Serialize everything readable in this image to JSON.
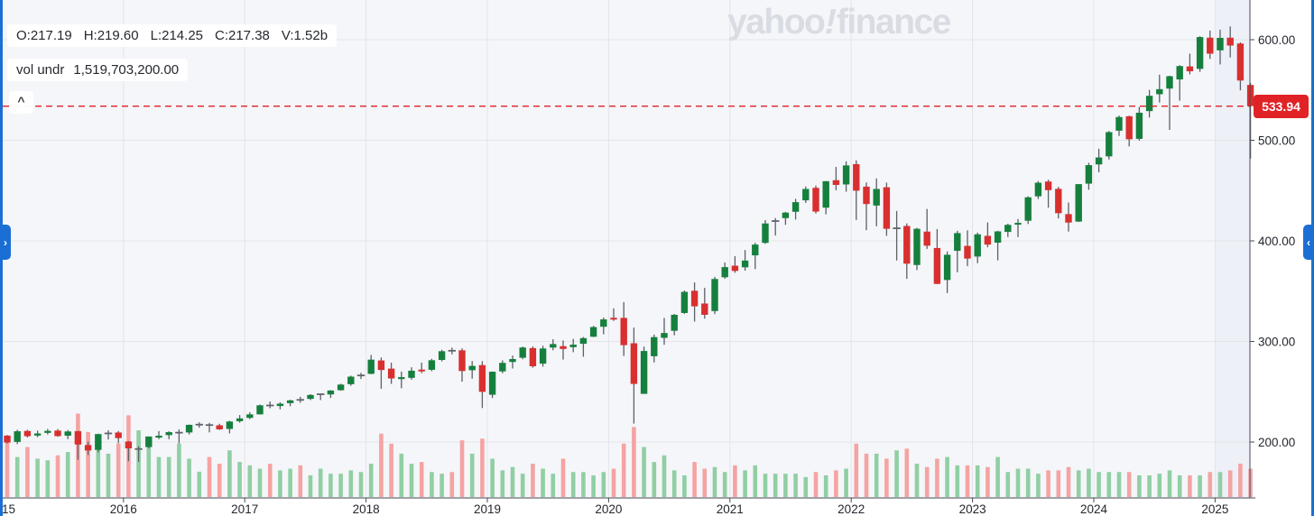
{
  "watermark": {
    "yahoo": "yahoo",
    "bang": "!",
    "finance": "finance"
  },
  "legend": {
    "ohlc_parts": [
      "O:217.19",
      "H:219.60",
      "L:214.25",
      "C:217.38",
      "V:1.52b"
    ],
    "vol_label": "vol undr",
    "vol_value": "1,519,703,200.00",
    "collapse_icon": "^"
  },
  "nav": {
    "left_icon": "›",
    "right_icon": "‹"
  },
  "price_marker": {
    "label": "533.94",
    "value": 533.94
  },
  "axes": {
    "y_ticks": [
      {
        "label": "600.00",
        "value": 600
      },
      {
        "label": "500.00",
        "value": 500
      },
      {
        "label": "400.00",
        "value": 400
      },
      {
        "label": "300.00",
        "value": 300
      },
      {
        "label": "200.00",
        "value": 200
      }
    ],
    "x_ticks": [
      {
        "label": "15",
        "year": 2015
      },
      {
        "label": "2016",
        "year": 2016
      },
      {
        "label": "2017",
        "year": 2017
      },
      {
        "label": "2018",
        "year": 2018
      },
      {
        "label": "2019",
        "year": 2019
      },
      {
        "label": "2020",
        "year": 2020
      },
      {
        "label": "2021",
        "year": 2021
      },
      {
        "label": "2022",
        "year": 2022
      },
      {
        "label": "2023",
        "year": 2023
      },
      {
        "label": "2024",
        "year": 2024
      },
      {
        "label": "2025",
        "year": 2025
      }
    ]
  },
  "colors": {
    "up": "#15803d",
    "down": "#d92f2f",
    "vol_up": "#90cfa4",
    "vol_down": "#f5a3a3",
    "wick": "#5c6068",
    "doji": "#5f646c",
    "accent_blue": "#1b6fd4",
    "marker_red": "#e02227",
    "grid": "#e3e5ea",
    "axis": "#464a54",
    "plot_bg": "#f5f6f9",
    "band_bg": "#edf0f7",
    "text": "#24272e",
    "watermark": "#d9dce3"
  },
  "chart_data": {
    "type": "candlestick",
    "interval": "monthly",
    "range": "2015 - 2025",
    "legend_note": "volume underlay, last price line shown",
    "price_line": 533.94,
    "y_axis_ticks": [
      200,
      300,
      400,
      500,
      600
    ],
    "x_axis_years": [
      2015,
      2016,
      2017,
      2018,
      2019,
      2020,
      2021,
      2022,
      2023,
      2024,
      2025
    ],
    "columns": [
      "month",
      "open",
      "high",
      "low",
      "close",
      "volume_billions"
    ],
    "candles": [
      [
        "2015-01",
        206.4,
        206.9,
        198.6,
        199.5,
        3.4
      ],
      [
        "2015-02",
        200.1,
        212.2,
        197.9,
        210.7,
        2.4
      ],
      [
        "2015-03",
        211.0,
        212.2,
        204.5,
        205.8,
        3.0
      ],
      [
        "2015-04",
        206.4,
        211.3,
        204.8,
        208.5,
        2.3
      ],
      [
        "2015-05",
        209.1,
        213.0,
        207.5,
        211.1,
        2.2
      ],
      [
        "2015-06",
        211.4,
        212.9,
        205.3,
        205.9,
        2.5
      ],
      [
        "2015-07",
        206.3,
        211.9,
        202.9,
        210.5,
        2.7
      ],
      [
        "2015-08",
        210.8,
        211.2,
        182.4,
        197.5,
        5.0
      ],
      [
        "2015-09",
        197.0,
        200.4,
        187.0,
        191.6,
        3.9
      ],
      [
        "2015-10",
        192.2,
        208.3,
        189.8,
        207.9,
        3.1
      ],
      [
        "2015-11",
        208.5,
        211.7,
        202.5,
        208.6,
        2.6
      ],
      [
        "2015-12",
        209.5,
        211.0,
        198.7,
        203.9,
        3.2
      ],
      [
        "2016-01",
        200.5,
        201.0,
        181.0,
        193.7,
        4.9
      ],
      [
        "2016-02",
        192.5,
        195.8,
        180.3,
        193.6,
        4.0
      ],
      [
        "2016-03",
        195.0,
        205.5,
        193.6,
        205.5,
        3.2
      ],
      [
        "2016-04",
        204.4,
        210.9,
        202.9,
        206.3,
        2.4
      ],
      [
        "2016-05",
        206.9,
        210.7,
        202.8,
        209.8,
        2.4
      ],
      [
        "2016-06",
        209.1,
        212.5,
        198.6,
        209.5,
        3.2
      ],
      [
        "2016-07",
        209.5,
        217.4,
        207.5,
        217.1,
        2.3
      ],
      [
        "2016-08",
        217.19,
        219.6,
        214.25,
        217.38,
        1.52
      ],
      [
        "2016-09",
        217.4,
        219.1,
        209.6,
        216.3,
        2.4
      ],
      [
        "2016-10",
        216.6,
        218.2,
        212.1,
        212.6,
        2.0
      ],
      [
        "2016-11",
        213.0,
        221.1,
        208.6,
        220.4,
        2.8
      ],
      [
        "2016-12",
        220.7,
        226.8,
        219.2,
        223.5,
        2.1
      ],
      [
        "2017-01",
        224.0,
        229.7,
        222.7,
        227.5,
        1.9
      ],
      [
        "2017-02",
        227.5,
        237.3,
        227.3,
        236.5,
        1.7
      ],
      [
        "2017-03",
        237.0,
        240.3,
        233.6,
        235.7,
        2.0
      ],
      [
        "2017-04",
        235.8,
        239.5,
        232.5,
        238.1,
        1.6
      ],
      [
        "2017-05",
        238.7,
        242.1,
        235.6,
        241.4,
        1.7
      ],
      [
        "2017-06",
        242.0,
        245.0,
        239.0,
        241.8,
        1.9
      ],
      [
        "2017-07",
        242.9,
        247.6,
        241.7,
        246.8,
        1.3
      ],
      [
        "2017-08",
        247.5,
        248.3,
        241.7,
        247.5,
        1.7
      ],
      [
        "2017-09",
        247.3,
        251.6,
        243.8,
        251.2,
        1.4
      ],
      [
        "2017-10",
        251.5,
        258.0,
        251.0,
        257.1,
        1.4
      ],
      [
        "2017-11",
        257.5,
        266.0,
        255.9,
        265.0,
        1.6
      ],
      [
        "2017-12",
        265.5,
        268.8,
        262.7,
        266.9,
        1.5
      ],
      [
        "2018-01",
        267.8,
        286.6,
        267.4,
        281.9,
        2.0
      ],
      [
        "2018-02",
        281.1,
        284.0,
        252.9,
        271.6,
        3.8
      ],
      [
        "2018-03",
        273.0,
        278.9,
        257.8,
        263.2,
        3.2
      ],
      [
        "2018-04",
        262.6,
        270.0,
        253.5,
        264.5,
        2.6
      ],
      [
        "2018-05",
        263.8,
        274.3,
        262.0,
        270.9,
        2.0
      ],
      [
        "2018-06",
        272.0,
        279.0,
        268.5,
        270.3,
        2.1
      ],
      [
        "2018-07",
        271.8,
        282.7,
        270.4,
        281.3,
        1.5
      ],
      [
        "2018-08",
        281.6,
        291.7,
        280.2,
        290.3,
        1.4
      ],
      [
        "2018-09",
        290.8,
        293.9,
        287.2,
        290.7,
        1.5
      ],
      [
        "2018-10",
        291.2,
        293.2,
        260.0,
        270.6,
        3.4
      ],
      [
        "2018-11",
        271.4,
        280.5,
        263.0,
        275.7,
        2.6
      ],
      [
        "2018-12",
        276.5,
        280.4,
        233.8,
        249.9,
        3.5
      ],
      [
        "2019-01",
        247.0,
        270.1,
        243.7,
        269.9,
        2.3
      ],
      [
        "2019-02",
        270.2,
        281.2,
        268.4,
        278.7,
        1.6
      ],
      [
        "2019-03",
        279.6,
        286.0,
        273.1,
        282.5,
        1.8
      ],
      [
        "2019-04",
        283.8,
        294.9,
        282.3,
        294.0,
        1.4
      ],
      [
        "2019-05",
        293.4,
        295.1,
        273.9,
        275.3,
        2.0
      ],
      [
        "2019-06",
        277.9,
        295.7,
        275.0,
        293.0,
        1.7
      ],
      [
        "2019-07",
        293.9,
        302.2,
        291.2,
        297.4,
        1.4
      ],
      [
        "2019-08",
        295.3,
        300.9,
        282.0,
        292.5,
        2.3
      ],
      [
        "2019-09",
        294.3,
        302.6,
        289.3,
        296.8,
        1.5
      ],
      [
        "2019-10",
        297.7,
        304.4,
        284.8,
        303.3,
        1.5
      ],
      [
        "2019-11",
        304.7,
        315.5,
        304.3,
        314.3,
        1.3
      ],
      [
        "2019-12",
        314.6,
        323.8,
        307.1,
        321.9,
        1.5
      ],
      [
        "2020-01",
        323.5,
        332.9,
        320.4,
        321.7,
        1.7
      ],
      [
        "2020-02",
        323.4,
        339.1,
        285.5,
        296.3,
        3.2
      ],
      [
        "2020-03",
        298.2,
        313.8,
        218.3,
        257.8,
        4.2
      ],
      [
        "2020-04",
        247.9,
        294.9,
        247.9,
        290.5,
        3.0
      ],
      [
        "2020-05",
        285.3,
        306.8,
        279.1,
        304.3,
        2.1
      ],
      [
        "2020-06",
        303.6,
        323.4,
        296.7,
        308.4,
        2.5
      ],
      [
        "2020-07",
        310.6,
        327.2,
        306.1,
        326.5,
        1.6
      ],
      [
        "2020-08",
        328.3,
        350.7,
        327.4,
        349.3,
        1.3
      ],
      [
        "2020-09",
        350.4,
        358.7,
        319.8,
        334.9,
        2.1
      ],
      [
        "2020-10",
        337.7,
        353.2,
        322.6,
        326.5,
        1.7
      ],
      [
        "2020-11",
        330.2,
        364.2,
        327.2,
        362.1,
        1.8
      ],
      [
        "2020-12",
        363.8,
        378.5,
        362.3,
        373.9,
        1.5
      ],
      [
        "2021-01",
        375.3,
        384.8,
        368.3,
        370.1,
        1.9
      ],
      [
        "2021-02",
        373.7,
        390.9,
        370.4,
        380.4,
        1.6
      ],
      [
        "2021-03",
        385.6,
        398.1,
        371.9,
        396.3,
        1.9
      ],
      [
        "2021-04",
        398.0,
        420.7,
        397.0,
        417.3,
        1.4
      ],
      [
        "2021-05",
        419.4,
        422.7,
        405.3,
        420.0,
        1.4
      ],
      [
        "2021-06",
        422.6,
        428.8,
        415.9,
        428.1,
        1.4
      ],
      [
        "2021-07",
        428.9,
        441.8,
        421.2,
        438.5,
        1.4
      ],
      [
        "2021-08",
        440.3,
        454.1,
        437.7,
        451.6,
        1.2
      ],
      [
        "2021-09",
        452.7,
        455.0,
        427.2,
        429.1,
        1.5
      ],
      [
        "2021-10",
        433.0,
        459.6,
        426.4,
        459.3,
        1.3
      ],
      [
        "2021-11",
        460.3,
        473.5,
        450.3,
        455.6,
        1.6
      ],
      [
        "2021-12",
        456.1,
        479.0,
        448.9,
        475.0,
        1.7
      ],
      [
        "2022-01",
        476.3,
        480.0,
        420.8,
        449.9,
        3.2
      ],
      [
        "2022-02",
        453.9,
        458.1,
        410.6,
        436.6,
        2.6
      ],
      [
        "2022-03",
        435.1,
        462.1,
        414.5,
        451.6,
        2.6
      ],
      [
        "2022-04",
        453.3,
        457.9,
        405.0,
        412.0,
        2.3
      ],
      [
        "2022-05",
        412.1,
        429.7,
        380.5,
        412.9,
        2.8
      ],
      [
        "2022-06",
        414.8,
        417.4,
        362.2,
        377.3,
        2.9
      ],
      [
        "2022-07",
        376.0,
        413.0,
        371.0,
        412.0,
        2.0
      ],
      [
        "2022-08",
        409.2,
        431.7,
        392.0,
        395.2,
        1.8
      ],
      [
        "2022-09",
        392.9,
        411.7,
        357.0,
        357.2,
        2.3
      ],
      [
        "2022-10",
        361.1,
        389.5,
        348.1,
        386.2,
        2.4
      ],
      [
        "2022-11",
        390.1,
        410.0,
        368.8,
        407.7,
        1.9
      ],
      [
        "2022-12",
        395.0,
        410.5,
        374.8,
        382.4,
        1.9
      ],
      [
        "2023-01",
        384.4,
        408.2,
        377.8,
        406.5,
        1.9
      ],
      [
        "2023-02",
        405.0,
        418.3,
        393.6,
        396.3,
        1.8
      ],
      [
        "2023-03",
        398.2,
        410.0,
        380.6,
        409.4,
        2.4
      ],
      [
        "2023-04",
        408.9,
        417.0,
        403.8,
        415.9,
        1.5
      ],
      [
        "2023-05",
        416.2,
        421.7,
        403.7,
        417.9,
        1.7
      ],
      [
        "2023-06",
        420.0,
        444.3,
        416.8,
        443.3,
        1.7
      ],
      [
        "2023-07",
        444.3,
        459.4,
        441.6,
        457.8,
        1.4
      ],
      [
        "2023-08",
        459.0,
        460.8,
        433.0,
        450.4,
        1.6
      ],
      [
        "2023-09",
        451.7,
        453.7,
        422.3,
        427.5,
        1.6
      ],
      [
        "2023-10",
        426.6,
        438.1,
        409.2,
        418.2,
        1.8
      ],
      [
        "2023-11",
        419.2,
        456.4,
        418.7,
        456.4,
        1.6
      ],
      [
        "2023-12",
        456.9,
        477.6,
        450.8,
        475.3,
        1.7
      ],
      [
        "2024-01",
        476.0,
        491.6,
        468.2,
        482.9,
        1.5
      ],
      [
        "2024-02",
        484.0,
        509.2,
        480.9,
        508.1,
        1.5
      ],
      [
        "2024-03",
        509.5,
        524.6,
        504.3,
        523.1,
        1.5
      ],
      [
        "2024-04",
        523.9,
        524.4,
        493.9,
        501.0,
        1.5
      ],
      [
        "2024-05",
        501.4,
        533.1,
        499.6,
        527.4,
        1.3
      ],
      [
        "2024-06",
        529.0,
        550.1,
        522.6,
        544.2,
        1.3
      ],
      [
        "2024-07",
        545.8,
        565.2,
        537.5,
        550.8,
        1.4
      ],
      [
        "2024-08",
        551.4,
        564.2,
        510.3,
        563.7,
        1.6
      ],
      [
        "2024-09",
        560.5,
        574.7,
        539.4,
        573.8,
        1.3
      ],
      [
        "2024-10",
        573.4,
        586.1,
        565.5,
        568.6,
        1.3
      ],
      [
        "2024-11",
        571.0,
        603.4,
        568.0,
        602.6,
        1.3
      ],
      [
        "2024-12",
        602.0,
        609.1,
        580.9,
        586.1,
        1.5
      ],
      [
        "2025-01",
        589.4,
        610.0,
        575.4,
        601.8,
        1.5
      ],
      [
        "2025-02",
        602.0,
        613.2,
        582.4,
        594.2,
        1.6
      ],
      [
        "2025-03",
        596.2,
        597.3,
        549.7,
        559.4,
        2.0
      ],
      [
        "2025-04",
        555.0,
        557.0,
        481.8,
        533.94,
        1.7
      ]
    ]
  }
}
